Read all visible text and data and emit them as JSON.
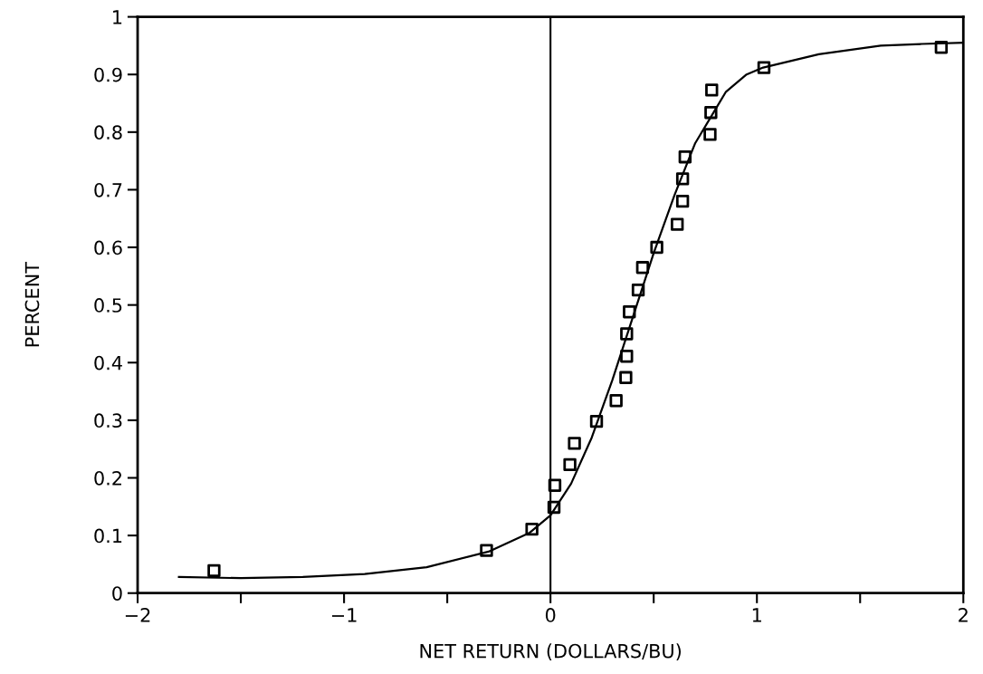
{
  "chart_data": {
    "type": "scatter",
    "xlabel": "NET RETURN (DOLLARS/BU)",
    "ylabel": "PERCENT",
    "xlim": [
      -2,
      2
    ],
    "ylim": [
      0,
      1
    ],
    "xticks": [
      -2,
      {
        "value": -1.5,
        "label": null
      },
      -1,
      {
        "value": -0.5,
        "label": null
      },
      0,
      {
        "value": 0.5,
        "label": null
      },
      1,
      {
        "value": 1.5,
        "label": null
      },
      2
    ],
    "yticks": [
      0,
      0.1,
      0.2,
      0.3,
      0.4,
      0.5,
      0.6,
      0.7,
      0.8,
      0.9,
      1
    ],
    "grid": false,
    "legend": false,
    "ref_lines": [
      {
        "axis": "x",
        "value": 0,
        "color": "#000000",
        "line_style": "solid"
      }
    ],
    "series": [
      {
        "marker": "square",
        "color": "#000000",
        "x": [
          -1.63,
          -0.31,
          -0.09,
          0.017,
          0.021,
          0.094,
          0.116,
          0.223,
          0.318,
          0.365,
          0.369,
          0.369,
          0.382,
          0.425,
          0.446,
          0.515,
          0.614,
          0.64,
          0.64,
          0.652,
          0.773,
          0.777,
          0.781,
          1.034,
          1.893
        ],
        "values": [
          0.039,
          0.074,
          0.111,
          0.149,
          0.187,
          0.223,
          0.26,
          0.298,
          0.334,
          0.374,
          0.411,
          0.45,
          0.488,
          0.526,
          0.565,
          0.6,
          0.64,
          0.68,
          0.719,
          0.757,
          0.796,
          0.834,
          0.873,
          0.912,
          0.947
        ]
      },
      {
        "type": "line",
        "marker": "none",
        "line_style": "solid",
        "color": "#000000",
        "x": [
          -1.8,
          -1.5,
          -1.2,
          -0.9,
          -0.6,
          -0.3,
          -0.1,
          0,
          0.1,
          0.2,
          0.3,
          0.4,
          0.5,
          0.6,
          0.7,
          0.8,
          0.85,
          0.95,
          1.03,
          1.3,
          1.6,
          1.8,
          2.0
        ],
        "values": [
          0.028,
          0.026,
          0.028,
          0.033,
          0.045,
          0.072,
          0.105,
          0.135,
          0.19,
          0.27,
          0.37,
          0.48,
          0.59,
          0.69,
          0.78,
          0.84,
          0.87,
          0.9,
          0.912,
          0.935,
          0.95,
          0.953,
          0.955
        ]
      }
    ]
  }
}
